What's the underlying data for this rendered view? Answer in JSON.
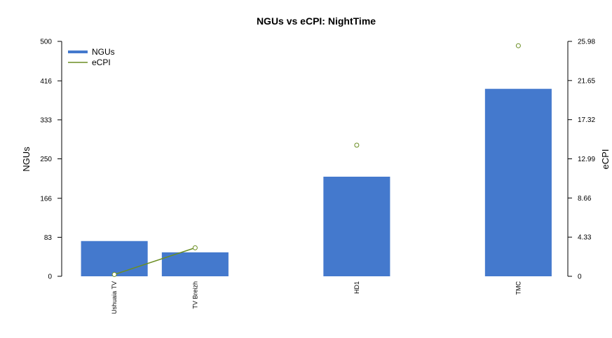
{
  "chart_data": {
    "type": "bar",
    "title": "NGUs vs eCPI: NightTime",
    "categories": [
      "Ushuaia TV",
      "TV Breizh",
      "",
      "HD1",
      "",
      "TMC"
    ],
    "series": [
      {
        "name": "NGUs",
        "type": "bar",
        "axis": "left",
        "color": "#4479CD",
        "values": [
          75,
          51,
          null,
          212,
          null,
          399
        ]
      },
      {
        "name": "eCPI",
        "type": "line",
        "axis": "right",
        "color": "#6B8E23",
        "values": [
          0.2,
          3.15,
          null,
          14.5,
          null,
          25.5
        ]
      }
    ],
    "ylabel": "NGUs",
    "ylabel_right": "eCPI",
    "ylim": [
      0,
      500
    ],
    "ylim_right": [
      0,
      25.98
    ],
    "yticks": [
      "0",
      "83",
      "166",
      "250",
      "333",
      "416",
      "500"
    ],
    "yticks_right": [
      "0",
      "4.33",
      "8.66",
      "12.99",
      "17.32",
      "21.65",
      "25.98"
    ],
    "legend_position": "top-left",
    "grid": false
  }
}
